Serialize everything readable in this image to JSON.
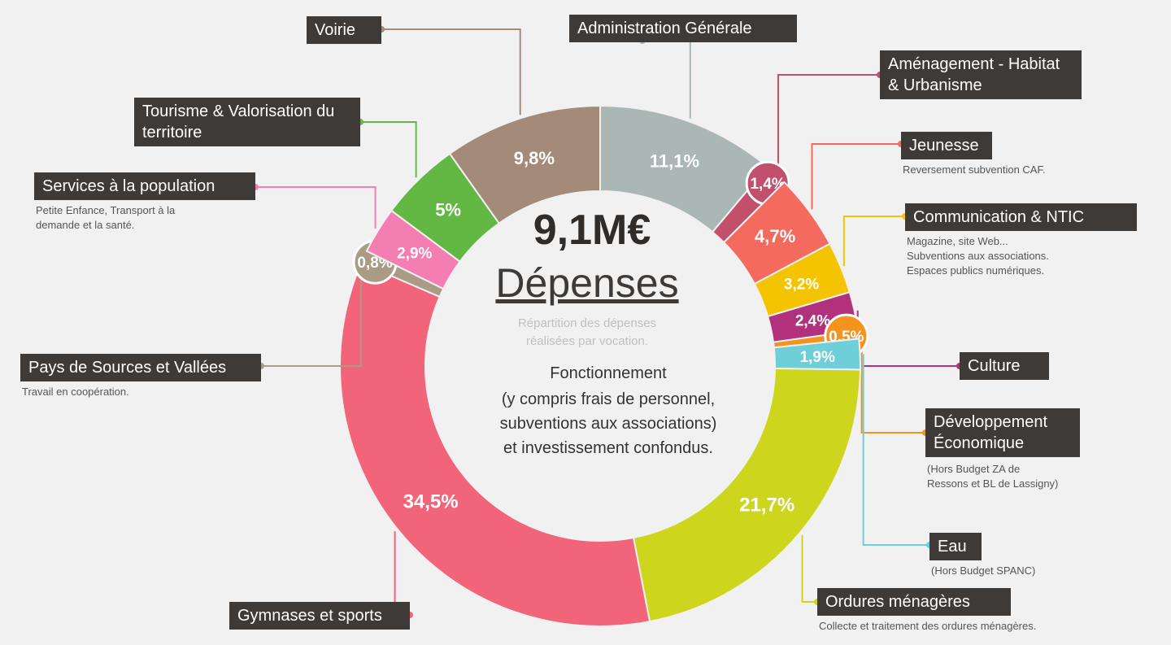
{
  "chart_data": {
    "type": "donut",
    "title": "9,1M€",
    "subtitle": "Dépenses",
    "note": [
      "Répartition des dépenses",
      "réalisées par vocation."
    ],
    "description": [
      "Fonctionnement",
      "(y compris frais de personnel,",
      "subventions aux associations)",
      "et investissement confondus."
    ],
    "categories": [
      "Administration Générale",
      "Aménagement - Habitat & Urbanisme",
      "Jeunesse",
      "Communication & NTIC",
      "Culture",
      "Développement Économique",
      "Eau",
      "Ordures ménagères",
      "Gymnases et sports",
      "Pays de Sources et Vallées",
      "Services à la population",
      "Tourisme & Valorisation du territoire",
      "Voirie"
    ],
    "descriptions": [
      null,
      null,
      [
        "Reversement subvention CAF."
      ],
      [
        "Magazine, site Web...",
        "Subventions aux associations.",
        "Espaces publics numériques."
      ],
      null,
      [
        "(Hors Budget ZA de",
        "Ressons et BL de Lassigny)"
      ],
      [
        "(Hors Budget SPANC)"
      ],
      [
        "Collecte et traitement des ordures ménagères."
      ],
      null,
      [
        "Travail en coopération."
      ],
      [
        "Petite Enfance, Transport à la",
        "demande et la santé."
      ],
      null,
      null
    ],
    "values": [
      11.1,
      1.4,
      4.7,
      3.2,
      2.4,
      0.5,
      1.9,
      21.7,
      34.5,
      0.8,
      2.9,
      5,
      9.8
    ],
    "value_labels": [
      "11,1%",
      "1,4%",
      "4,7%",
      "3,2%",
      "2,4%",
      "0,5%",
      "1,9%",
      "21,7%",
      "34,5%",
      "0,8%",
      "2,9%",
      "5%",
      "9,8%"
    ],
    "colors": [
      "#aab7b4",
      "#c2506d",
      "#f46a5f",
      "#f5c400",
      "#b2317d",
      "#f4931e",
      "#6fcfd9",
      "#cdd51c",
      "#f1647a",
      "#a99b84",
      "#f47db2",
      "#62b843",
      "#a48b79"
    ]
  }
}
